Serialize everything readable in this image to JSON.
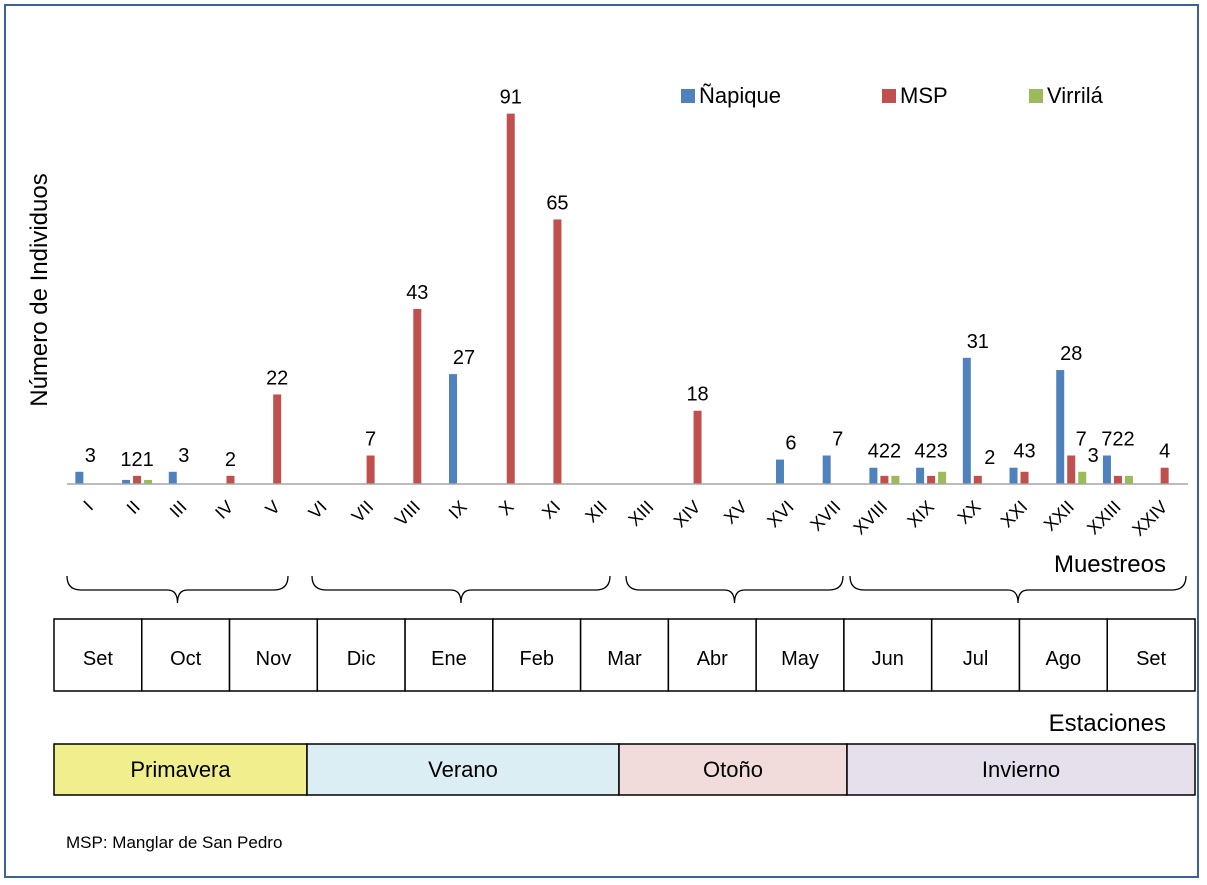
{
  "chart_data": {
    "type": "bar",
    "xlabel": "Muestreos",
    "ylabel": "Número de Individuos",
    "ylim": [
      0,
      100
    ],
    "legend_position": "top-right",
    "categories": [
      "I",
      "II",
      "III",
      "IV",
      "V",
      "VI",
      "VII",
      "VIII",
      "IX",
      "X",
      "XI",
      "XII",
      "XIII",
      "XIV",
      "XV",
      "XVI",
      "XVII",
      "XVIII",
      "XIX",
      "XX",
      "XXI",
      "XXII",
      "XXIII",
      "XXIV"
    ],
    "series": [
      {
        "name": "Ñapique",
        "color": "#4f81bd",
        "values": [
          3,
          1,
          3,
          0,
          0,
          0,
          0,
          0,
          27,
          0,
          0,
          0,
          0,
          0,
          0,
          6,
          7,
          4,
          4,
          31,
          4,
          28,
          7,
          0
        ]
      },
      {
        "name": "MSP",
        "color": "#c0504d",
        "values": [
          0,
          2,
          0,
          2,
          22,
          0,
          7,
          43,
          0,
          91,
          65,
          0,
          0,
          18,
          0,
          0,
          0,
          2,
          2,
          2,
          3,
          7,
          2,
          4
        ]
      },
      {
        "name": "Virrilá",
        "color": "#9bbb59",
        "values": [
          0,
          1,
          0,
          0,
          0,
          0,
          0,
          0,
          0,
          0,
          0,
          0,
          0,
          0,
          0,
          0,
          0,
          2,
          3,
          0,
          0,
          3,
          2,
          0
        ]
      }
    ],
    "data_labels": [
      {
        "category": "I",
        "text": "3"
      },
      {
        "category": "II",
        "text": "121"
      },
      {
        "category": "III",
        "text": "3"
      },
      {
        "category": "IV",
        "text": "2"
      },
      {
        "category": "V",
        "text": "22"
      },
      {
        "category": "VII",
        "text": "7"
      },
      {
        "category": "VIII",
        "text": "43"
      },
      {
        "category": "IX",
        "text": "27"
      },
      {
        "category": "X",
        "text": "91"
      },
      {
        "category": "XI",
        "text": "65"
      },
      {
        "category": "XIV",
        "text": "18"
      },
      {
        "category": "XVI",
        "text": "6"
      },
      {
        "category": "XVII",
        "text": "7"
      },
      {
        "category": "XVIII",
        "text": "422"
      },
      {
        "category": "XIX",
        "text": "423"
      },
      {
        "category": "XX",
        "text": "31"
      },
      {
        "category": "XX",
        "text": "2"
      },
      {
        "category": "XXI",
        "text": "43"
      },
      {
        "category": "XXII",
        "text": "28"
      },
      {
        "category": "XXII",
        "text": "7"
      },
      {
        "category": "XXII",
        "text": "3"
      },
      {
        "category": "XXIII",
        "text": "722"
      },
      {
        "category": "XXIV",
        "text": "4"
      }
    ],
    "months": [
      "Set",
      "Oct",
      "Nov",
      "Dic",
      "Ene",
      "Feb",
      "Mar",
      "Abr",
      "May",
      "Jun",
      "Jul",
      "Ago",
      "Set"
    ],
    "months_title": "Estaciones",
    "seasons": [
      {
        "name": "Primavera",
        "color": "#f1ee8e"
      },
      {
        "name": "Verano",
        "color": "#daeef3"
      },
      {
        "name": "Otoño",
        "color": "#f2dcdb"
      },
      {
        "name": "Invierno",
        "color": "#e5e0ec"
      }
    ]
  },
  "footnote": "MSP: Manglar de San Pedro"
}
